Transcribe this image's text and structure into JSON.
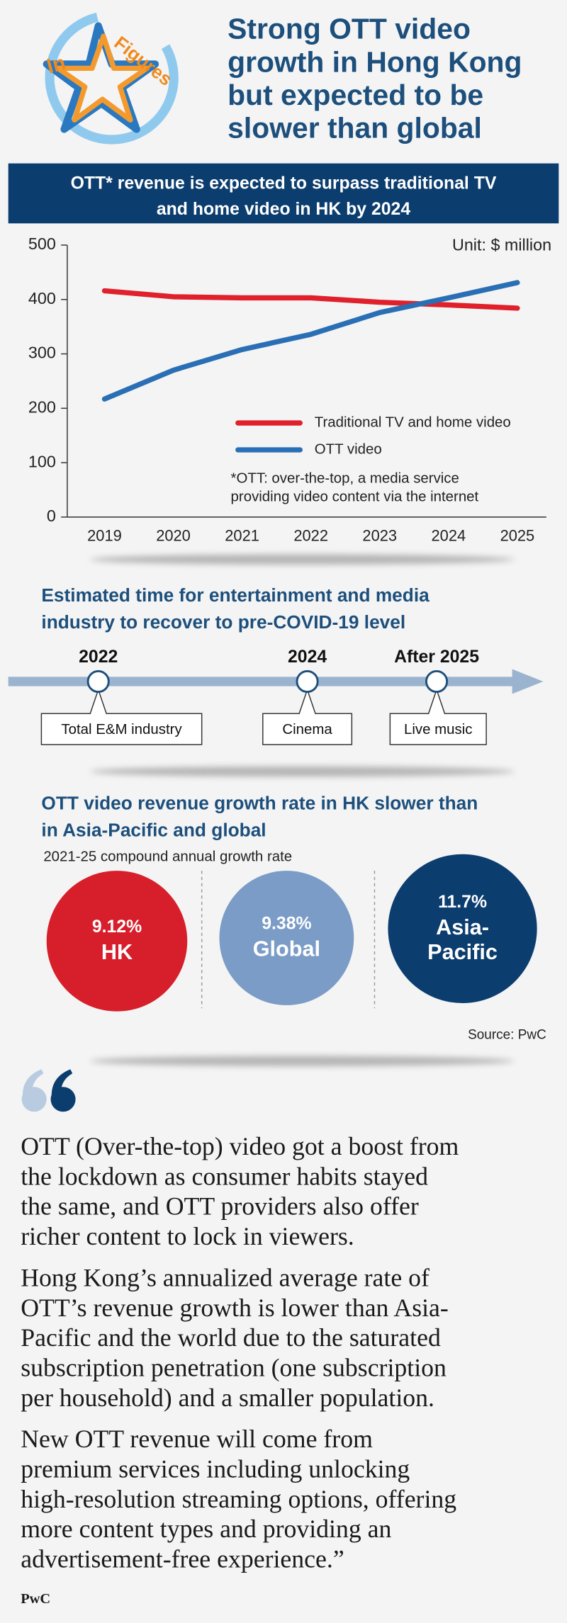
{
  "header": {
    "logo_words": [
      "In",
      "Figures"
    ],
    "title_lines": [
      "Strong OTT video",
      "growth in Hong Kong",
      "but expected to be",
      "slower than global"
    ]
  },
  "chart_data": {
    "type": "line",
    "title_lines": [
      "OTT* revenue is expected to surpass traditional TV",
      "and home video in HK by 2024"
    ],
    "unit": "Unit: $ million",
    "categories": [
      "2019",
      "2020",
      "2021",
      "2022",
      "2023",
      "2024",
      "2025"
    ],
    "series": [
      {
        "name": "Traditional TV and home video",
        "color": "#e0202b",
        "values": [
          416,
          405,
          403,
          403,
          395,
          390,
          384
        ]
      },
      {
        "name": "OTT video",
        "color": "#2a6fb5",
        "values": [
          217,
          270,
          308,
          336,
          376,
          403,
          431
        ]
      }
    ],
    "ylim": [
      0,
      500
    ],
    "yticks": [
      0,
      100,
      200,
      300,
      400,
      500
    ],
    "note_lines": [
      "*OTT: over-the-top, a media service",
      "providing video content via the internet"
    ]
  },
  "recovery": {
    "title_lines": [
      "Estimated time for entertainment and media",
      "industry to recover to pre-COVID-19 level"
    ],
    "milestones": [
      {
        "year": "2022",
        "label": "Total E&M industry"
      },
      {
        "year": "2024",
        "label": "Cinema"
      },
      {
        "year": "After 2025",
        "label": "Live music"
      }
    ]
  },
  "growth": {
    "title_lines": [
      "OTT video revenue growth rate in HK slower than",
      "in Asia-Pacific and global"
    ],
    "subtitle": "2021-25 compound annual growth rate",
    "items": [
      {
        "value": "9.12%",
        "name_lines": [
          "HK"
        ],
        "color": "#d71f2b"
      },
      {
        "value": "9.38%",
        "name_lines": [
          "Global"
        ],
        "color": "#7a9cc6"
      },
      {
        "value": "11.7%",
        "name_lines": [
          "Asia-",
          "Pacific"
        ],
        "color": "#0b3d6e"
      }
    ],
    "source": "Source: PwC"
  },
  "quote": {
    "paragraphs": [
      [
        "OTT (Over-the-top) video got a boost from",
        "the lockdown as consumer habits stayed",
        "the same, and OTT providers also offer",
        "richer content to lock in viewers."
      ],
      [
        "Hong Kong’s annualized average rate of",
        "OTT’s revenue growth is lower than Asia-",
        "Pacific and the world due to the saturated",
        "subscription penetration (one subscription",
        "per household) and a smaller population."
      ],
      [
        "New OTT revenue will come from",
        "premium services including unlocking",
        "high-resolution streaming options, offering",
        "more content types and providing an",
        "advertisement-free experience.”"
      ]
    ],
    "author": "PwC"
  }
}
